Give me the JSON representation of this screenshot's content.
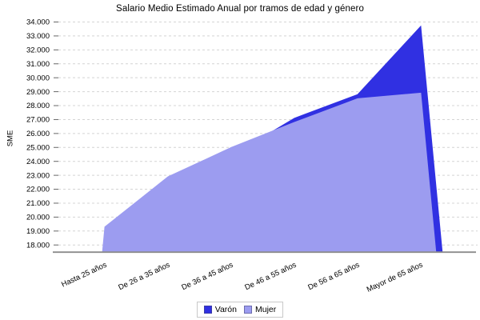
{
  "title": "Salario Medio Estimado Anual por tramos de edad y género",
  "y_axis": {
    "label": "SME",
    "ticks": [
      "34.000",
      "33.000",
      "32.000",
      "31.000",
      "30.000",
      "29.000",
      "28.000",
      "27.000",
      "26.000",
      "25.000",
      "24.000",
      "23.000",
      "22.000",
      "21.000",
      "20.000",
      "19.000",
      "18.000"
    ],
    "tick_values": [
      34000,
      33000,
      32000,
      31000,
      30000,
      29000,
      28000,
      27000,
      26000,
      25000,
      24000,
      23000,
      22000,
      21000,
      20000,
      19000,
      18000
    ]
  },
  "x_axis": {
    "labels": [
      "Hasta 25 años",
      "De 26 a 35 años",
      "De 36 a 45 años",
      "De 46 a 55 años",
      "De 56 a 65 años",
      "Mayor de 65 años"
    ]
  },
  "legend": {
    "items": [
      {
        "label": "Varón",
        "color": "#3030E2"
      },
      {
        "label": "Mujer",
        "color": "#9C9CF0"
      }
    ]
  },
  "colors": {
    "varon": "#3030E2",
    "mujer": "#9C9CF0",
    "gridline": "#d4d4d4",
    "axis_line": "#8c8c8c",
    "tick_mark": "#666666"
  },
  "chart_data": {
    "type": "area",
    "title": "Salario Medio Estimado Anual por tramos de edad y género",
    "xlabel": "",
    "ylabel": "SME",
    "categories": [
      "Hasta 25 años",
      "De 26 a 35 años",
      "De 36 a 45 años",
      "De 46 a 55 años",
      "De 56 a 65 años",
      "Mayor de 65 años"
    ],
    "series": [
      {
        "name": "Varón",
        "color": "#3030E2",
        "values": [
          19000,
          22500,
          24400,
          27100,
          28800,
          33700
        ]
      },
      {
        "name": "Mujer",
        "color": "#9C9CF0",
        "values": [
          19300,
          22900,
          25000,
          26800,
          28500,
          28900
        ]
      }
    ],
    "ylim": [
      17550,
      34320
    ],
    "y_tick_step": 1000,
    "grid": "horizontal-dashed",
    "legend_position": "bottom",
    "note_units": "SME (salario medio estimado anual)"
  }
}
